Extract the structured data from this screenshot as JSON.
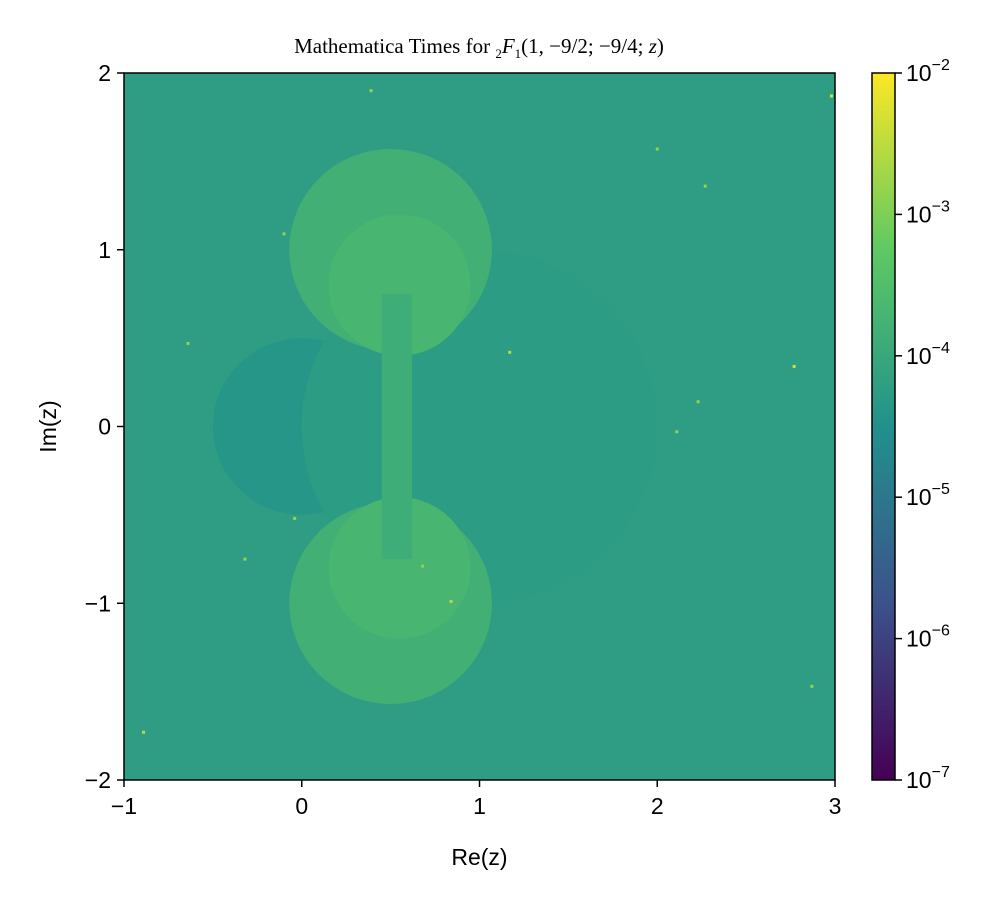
{
  "chart_data": {
    "type": "heatmap",
    "title": {
      "prefix": "Mathematica Times for ",
      "subscript": "2",
      "func": "F",
      "func_sub": "1",
      "args": "(1, −9/2; −9/4; ",
      "var": "z",
      "close": ")"
    },
    "xlabel": "Re(z)",
    "ylabel": "Im(z)",
    "xlim": [
      -1,
      3
    ],
    "ylim": [
      -2,
      2
    ],
    "x_ticks": [
      -1,
      0,
      1,
      2,
      3
    ],
    "x_tick_labels": [
      "−1",
      "0",
      "1",
      "2",
      "3"
    ],
    "y_ticks": [
      -2,
      -1,
      0,
      1,
      2
    ],
    "y_tick_labels": [
      "−2",
      "−1",
      "0",
      "1",
      "2"
    ],
    "colorbar": {
      "scale": "log",
      "range": [
        1e-07,
        0.01
      ],
      "ticks": [
        {
          "value": 0.01,
          "base": "10",
          "exp": "−2"
        },
        {
          "value": 0.001,
          "base": "10",
          "exp": "−3"
        },
        {
          "value": 0.0001,
          "base": "10",
          "exp": "−4"
        },
        {
          "value": 1e-05,
          "base": "10",
          "exp": "−5"
        },
        {
          "value": 1e-06,
          "base": "10",
          "exp": "−6"
        },
        {
          "value": 1e-07,
          "base": "10",
          "exp": "−7"
        }
      ],
      "colormap": [
        "#440154",
        "#3b528b",
        "#21918c",
        "#5ec962",
        "#fde725"
      ]
    },
    "background_value": 6e-05,
    "regions": [
      {
        "name": "left-disk",
        "shape": "circle",
        "center": [
          0,
          0
        ],
        "radius": 0.5,
        "value": 4e-05
      },
      {
        "name": "right-disk",
        "shape": "circle",
        "center": [
          1,
          0
        ],
        "radius": 1.0,
        "value": 5.5e-05
      },
      {
        "name": "upper-disk",
        "shape": "circle",
        "center": [
          0.5,
          1.0
        ],
        "radius": 0.57,
        "value": 0.00015
      },
      {
        "name": "lower-disk",
        "shape": "circle",
        "center": [
          0.5,
          -1.0
        ],
        "radius": 0.57,
        "value": 0.00015
      },
      {
        "name": "upper-inner-disk",
        "shape": "circle",
        "center": [
          0.55,
          0.8
        ],
        "radius": 0.4,
        "value": 0.0002
      },
      {
        "name": "lower-inner-disk",
        "shape": "circle",
        "center": [
          0.55,
          -0.8
        ],
        "radius": 0.4,
        "value": 0.0002
      },
      {
        "name": "center-strip",
        "shape": "rect",
        "x": [
          0.45,
          0.62
        ],
        "y": [
          -0.75,
          0.75
        ],
        "value": 0.00013
      }
    ],
    "outliers": [
      {
        "x": 0.39,
        "y": 1.9,
        "value": 0.0015
      },
      {
        "x": 2.98,
        "y": 1.87,
        "value": 0.005
      },
      {
        "x": 2.0,
        "y": 1.57,
        "value": 0.0015
      },
      {
        "x": 2.27,
        "y": 1.36,
        "value": 0.0015
      },
      {
        "x": -0.1,
        "y": 1.09,
        "value": 0.0015
      },
      {
        "x": -0.64,
        "y": 0.47,
        "value": 0.0015
      },
      {
        "x": 1.17,
        "y": 0.42,
        "value": 0.003
      },
      {
        "x": 2.77,
        "y": 0.34,
        "value": 0.005
      },
      {
        "x": 2.23,
        "y": 0.14,
        "value": 0.0015
      },
      {
        "x": 2.11,
        "y": -0.03,
        "value": 0.0015
      },
      {
        "x": -0.04,
        "y": -0.52,
        "value": 0.0015
      },
      {
        "x": -0.32,
        "y": -0.75,
        "value": 0.0015
      },
      {
        "x": 0.68,
        "y": -0.79,
        "value": 0.0015
      },
      {
        "x": 0.84,
        "y": -0.99,
        "value": 0.003
      },
      {
        "x": 2.87,
        "y": -1.47,
        "value": 0.0015
      },
      {
        "x": -0.89,
        "y": -1.73,
        "value": 0.003
      }
    ]
  }
}
